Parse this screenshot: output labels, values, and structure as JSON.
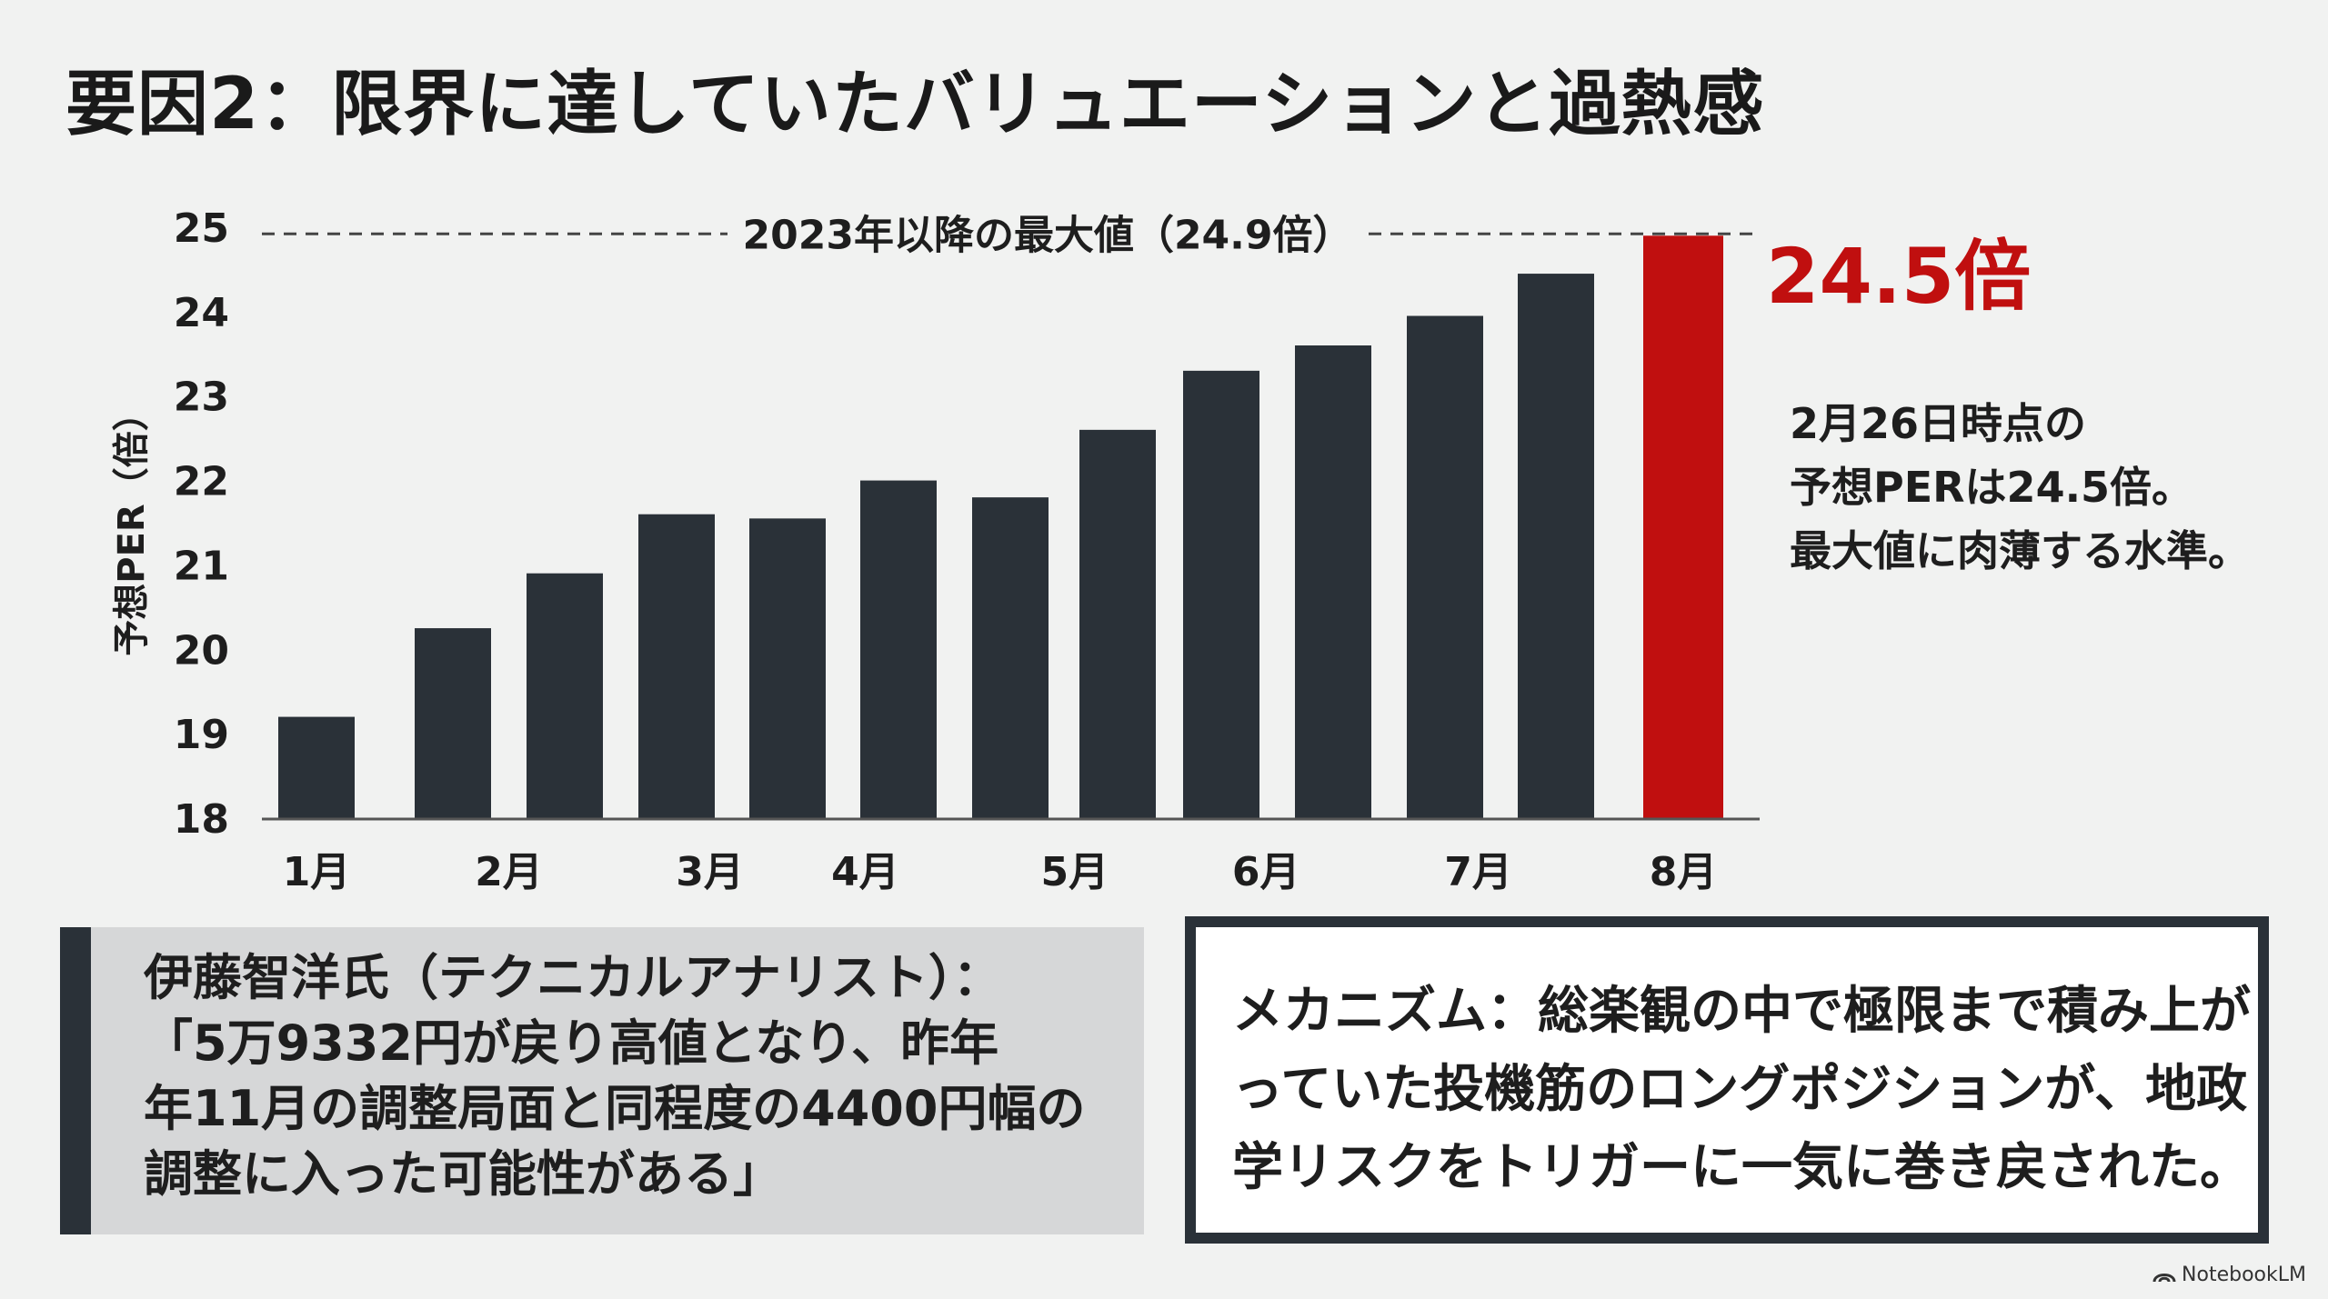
{
  "title": "要因2：限界に達していたバリュエーションと過熱感",
  "colors": {
    "bar": "#2a3138",
    "highlight": "#c00f0f",
    "text": "#1e1e1e"
  },
  "chart_data": {
    "type": "bar",
    "ylabel": "予想PER（倍）",
    "ylim": [
      18,
      25
    ],
    "yticks": [
      18,
      19,
      20,
      21,
      22,
      23,
      24,
      25
    ],
    "values": [
      19.2,
      20.25,
      20.9,
      21.6,
      21.55,
      22.0,
      21.8,
      22.6,
      23.3,
      23.6,
      23.95,
      24.45,
      24.9
    ],
    "highlight_index": 12,
    "month_labels": [
      {
        "label": "1月",
        "bar": 0
      },
      {
        "label": "2月",
        "bar": 1.5
      },
      {
        "label": "3月",
        "bar": 3.3
      },
      {
        "label": "4月",
        "bar": 4.7
      },
      {
        "label": "5月",
        "bar": 6.6
      },
      {
        "label": "6月",
        "bar": 8.4
      },
      {
        "label": "7月",
        "bar": 10.3
      },
      {
        "label": "8月",
        "bar": 12
      }
    ],
    "reference_line": {
      "value": 24.9,
      "label": "2023年以降の最大値（24.9倍）"
    },
    "callout_value": "24.5倍",
    "annotation": [
      "2月26日時点の",
      "予想PERは24.5倍。",
      "最大値に肉薄する水準。"
    ]
  },
  "quote": {
    "lines": [
      "伊藤智洋氏（テクニカルアナリスト）：",
      "「5万9332円が戻り高値となり、昨年",
      "年11月の調整局面と同程度の4400円幅の",
      "調整に入った可能性がある」"
    ]
  },
  "mechanism": {
    "lines": [
      "メカニズム：総楽観の中で極限まで積み上が",
      "っていた投機筋のロングポジションが、地政",
      "学リスクをトリガーに一気に巻き戻された。"
    ]
  },
  "brand": {
    "name": "NotebookLM",
    "icon": "notebooklm-icon"
  }
}
